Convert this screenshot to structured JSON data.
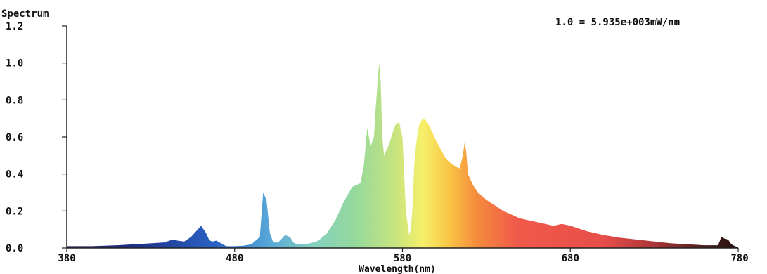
{
  "chart_data": {
    "type": "area",
    "title": "Spectrum",
    "xlabel": "Wavelength(nm)",
    "ylabel": "",
    "annotation": "1.0 = 5.935e+003mW/nm",
    "xlim": [
      380,
      780
    ],
    "ylim": [
      0,
      1.2
    ],
    "xticks": [
      380,
      480,
      580,
      680,
      780
    ],
    "xtick_labels": [
      "380",
      "480",
      "580",
      "680",
      "780"
    ],
    "yticks": [
      0,
      0.2,
      0.4,
      0.6,
      0.8,
      1.0,
      1.2
    ],
    "ytick_labels": [
      "0.0",
      "0.2",
      "0.4",
      "0.6",
      "0.8",
      "1.0",
      "1.2"
    ],
    "grid": false,
    "fill": "spectral-gradient",
    "series": [
      {
        "x": [
          380,
          395,
          410,
          420,
          430,
          438,
          443,
          446,
          450,
          454,
          458,
          460,
          463,
          465,
          467,
          469,
          471,
          473,
          475,
          480,
          485,
          490,
          495,
          497,
          499,
          501,
          503,
          506,
          510,
          513,
          515,
          517,
          520,
          525,
          530,
          535,
          540,
          545,
          550,
          555,
          557,
          559,
          561,
          563,
          564,
          566,
          567,
          568,
          569,
          570,
          572,
          574,
          576,
          578,
          580,
          581,
          582,
          584,
          585,
          586,
          587,
          588,
          589,
          590,
          592,
          594,
          596,
          598,
          600,
          603,
          606,
          610,
          614,
          616,
          617,
          618,
          619,
          620,
          622,
          625,
          630,
          640,
          650,
          660,
          670,
          675,
          680,
          690,
          700,
          710,
          720,
          730,
          740,
          750,
          760,
          768,
          770,
          772,
          774,
          776,
          778,
          780
        ],
        "y": [
          0.01,
          0.01,
          0.015,
          0.02,
          0.025,
          0.03,
          0.045,
          0.04,
          0.035,
          0.06,
          0.1,
          0.12,
          0.08,
          0.04,
          0.035,
          0.04,
          0.03,
          0.02,
          0.01,
          0.01,
          0.012,
          0.02,
          0.06,
          0.3,
          0.26,
          0.08,
          0.03,
          0.03,
          0.07,
          0.06,
          0.03,
          0.02,
          0.02,
          0.025,
          0.04,
          0.08,
          0.15,
          0.25,
          0.33,
          0.35,
          0.45,
          0.65,
          0.55,
          0.6,
          0.75,
          1.0,
          0.9,
          0.6,
          0.5,
          0.52,
          0.56,
          0.62,
          0.67,
          0.68,
          0.6,
          0.4,
          0.2,
          0.07,
          0.1,
          0.22,
          0.45,
          0.55,
          0.62,
          0.67,
          0.7,
          0.69,
          0.66,
          0.62,
          0.58,
          0.53,
          0.48,
          0.45,
          0.43,
          0.5,
          0.57,
          0.52,
          0.4,
          0.38,
          0.34,
          0.3,
          0.26,
          0.2,
          0.16,
          0.14,
          0.12,
          0.13,
          0.12,
          0.09,
          0.07,
          0.055,
          0.045,
          0.035,
          0.025,
          0.02,
          0.015,
          0.015,
          0.06,
          0.05,
          0.045,
          0.02,
          0.01,
          0.005
        ]
      }
    ]
  }
}
